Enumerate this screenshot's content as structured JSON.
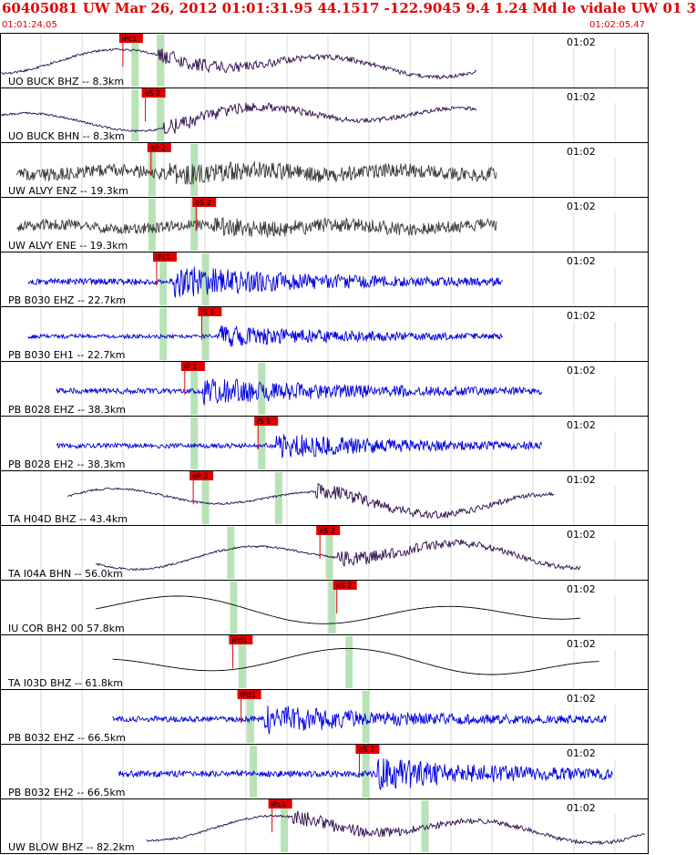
{
  "header": {
    "title": "60405081 UW Mar 26, 2012 01:01:31.95    44.1517 -122.9045  9.4 1.24 Md le vidale UW 01   3",
    "start_time": "01:01:24.05",
    "end_time": "01:02:05.47"
  },
  "colors": {
    "red": "#e00000",
    "green_band": "#b7e3b7",
    "blue": "#0000e0",
    "dark_gray": "#3a3a3a",
    "purple": "#2c0a4a",
    "black": "#000000",
    "grid": "#c0c0c0"
  },
  "chart_data": {
    "type": "line",
    "time_axis": [
      "01:01:24.05",
      "01:02:05.47"
    ],
    "time_tick": "01:02",
    "panels": [
      {
        "label": "UO BUCK BHZ -- 8.3km",
        "color": "purple",
        "style": "lowfreq",
        "start": 0.0,
        "end": 0.74,
        "amp": 0.35,
        "pick": {
          "label": "iPc1",
          "t": 0.215
        },
        "bands": [
          0.24,
          0.285
        ],
        "event": 0.28
      },
      {
        "label": "UO BUCK BHN -- 8.3km",
        "color": "purple",
        "style": "lowfreq",
        "start": 0.0,
        "end": 0.74,
        "amp": 0.35,
        "pick": {
          "label": "eS 2",
          "t": 0.255
        },
        "bands": [
          0.24,
          0.285
        ],
        "event": 0.29
      },
      {
        "label": "UW ALVY ENZ -- 19.3km",
        "color": "dark_gray",
        "style": "noise",
        "start": 0.03,
        "end": 0.77,
        "amp": 0.45,
        "pick": {
          "label": "eP 2",
          "t": 0.265
        },
        "bands": [
          0.27,
          0.345
        ],
        "event": 0.3
      },
      {
        "label": "UW ALVY ENE -- 19.3km",
        "color": "dark_gray",
        "style": "noise",
        "start": 0.03,
        "end": 0.77,
        "amp": 0.4,
        "pick": {
          "label": "eS 2",
          "t": 0.345
        },
        "bands": [
          0.27,
          0.345
        ],
        "event": 0.38
      },
      {
        "label": "PB B030 EHZ -- 22.7km",
        "color": "blue",
        "style": "hf",
        "start": 0.05,
        "end": 0.78,
        "amp": 0.45,
        "pick": {
          "label": "iPc1",
          "t": 0.275
        },
        "bands": [
          0.29,
          0.365
        ],
        "event": 0.31
      },
      {
        "label": "PB B030 EH1 -- 22.7km",
        "color": "blue",
        "style": "hf",
        "start": 0.05,
        "end": 0.78,
        "amp": 0.3,
        "pick": {
          "label": "iS 1",
          "t": 0.355
        },
        "bands": [
          0.29,
          0.365
        ],
        "event": 0.39
      },
      {
        "label": "PB B028 EHZ -- 38.3km",
        "color": "blue",
        "style": "hf",
        "start": 0.1,
        "end": 0.84,
        "amp": 0.4,
        "pick": {
          "label": "iP 1",
          "t": 0.325
        },
        "bands": [
          0.345,
          0.465
        ],
        "event": 0.36
      },
      {
        "label": "PB B028 EH2 -- 38.3km",
        "color": "blue",
        "style": "hf",
        "start": 0.1,
        "end": 0.84,
        "amp": 0.35,
        "pick": {
          "label": "iS 1",
          "t": 0.455
        },
        "bands": [
          0.345,
          0.465
        ],
        "event": 0.49
      },
      {
        "label": "TA H04D BHZ -- 43.4km",
        "color": "purple",
        "style": "lowfreq",
        "start": 0.12,
        "end": 0.86,
        "amp": 0.35,
        "pick": {
          "label": "eP 2",
          "t": 0.34
        },
        "bands": [
          0.365,
          0.495
        ],
        "event": 0.56
      },
      {
        "label": "TA I04A BHN -- 56.0km",
        "color": "purple",
        "style": "lowfreq",
        "start": 0.17,
        "end": 0.9,
        "amp": 0.35,
        "pick": {
          "label": "eS 2",
          "t": 0.565
        },
        "bands": [
          0.41,
          0.585
        ],
        "event": 0.6
      },
      {
        "label": "IU COR BH2 00 57.8km",
        "color": "black",
        "style": "smooth",
        "start": 0.17,
        "end": 0.9,
        "amp": 0.35,
        "pick": {
          "label": "eS 2",
          "t": 0.595
        },
        "bands": [
          0.415,
          0.59
        ],
        "event": 0.63
      },
      {
        "label": "TA I03D BHZ -- 61.8km",
        "color": "black",
        "style": "smooth",
        "start": 0.2,
        "end": 0.93,
        "amp": 0.35,
        "pick": {
          "label": "iPd1",
          "t": 0.41
        },
        "bands": [
          0.43,
          0.62
        ],
        "event": 0.45
      },
      {
        "label": "PB B032 EHZ -- 66.5km",
        "color": "blue",
        "style": "hf",
        "start": 0.2,
        "end": 0.94,
        "amp": 0.4,
        "pick": {
          "label": "iPd1",
          "t": 0.425
        },
        "bands": [
          0.445,
          0.65
        ],
        "event": 0.47
      },
      {
        "label": "PB B032 EH2 -- 66.5km",
        "color": "blue",
        "style": "hf",
        "start": 0.21,
        "end": 0.95,
        "amp": 0.45,
        "pick": {
          "label": "eS 2",
          "t": 0.635
        },
        "bands": [
          0.45,
          0.65
        ],
        "event": 0.67
      },
      {
        "label": "UW BLOW BHZ -- 82.2km",
        "color": "purple",
        "style": "lowfreq",
        "start": 0.26,
        "end": 1.0,
        "amp": 0.35,
        "pick": {
          "label": "iPc1",
          "t": 0.48
        },
        "bands": [
          0.505,
          0.755
        ],
        "event": 0.52
      }
    ]
  }
}
